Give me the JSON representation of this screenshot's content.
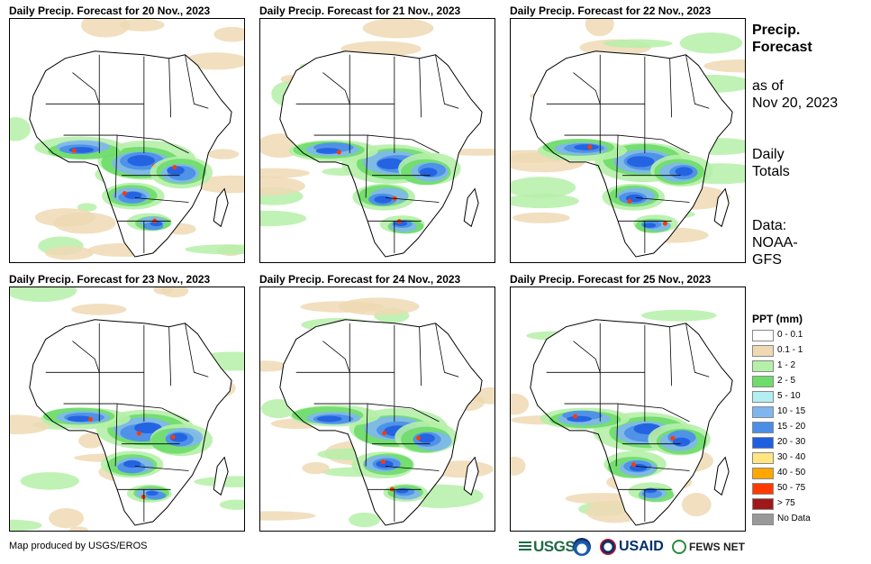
{
  "panels": [
    {
      "title": "Daily Precip. Forecast for 20 Nov., 2023"
    },
    {
      "title": "Daily Precip. Forecast for 21 Nov., 2023"
    },
    {
      "title": "Daily Precip. Forecast for 22 Nov., 2023"
    },
    {
      "title": "Daily Precip. Forecast for 23 Nov., 2023"
    },
    {
      "title": "Daily Precip. Forecast for 24 Nov., 2023"
    },
    {
      "title": "Daily Precip. Forecast for 25 Nov., 2023"
    }
  ],
  "sidebar": {
    "title_line1": "Precip.",
    "title_line2": "Forecast",
    "asof_line1": "as of",
    "asof_line2": "Nov 20, 2023",
    "totals_line1": "Daily",
    "totals_line2": "Totals",
    "data_line1": "Data:",
    "data_line2": "NOAA-",
    "data_line3": "GFS"
  },
  "legend": {
    "title": "PPT (mm)",
    "items": [
      {
        "label": "0 - 0.1",
        "color": "#ffffff"
      },
      {
        "label": "0.1 - 1",
        "color": "#efd9b4"
      },
      {
        "label": "1 - 2",
        "color": "#b5f0a8"
      },
      {
        "label": "2 - 5",
        "color": "#6ddc6a"
      },
      {
        "label": "5 - 10",
        "color": "#b2eef2"
      },
      {
        "label": "10 - 15",
        "color": "#7fb6ef"
      },
      {
        "label": "15 - 20",
        "color": "#4a8ee8"
      },
      {
        "label": "20 - 30",
        "color": "#1f5ee0"
      },
      {
        "label": "30 - 40",
        "color": "#ffe680"
      },
      {
        "label": "40 - 50",
        "color": "#ffa600"
      },
      {
        "label": "50 - 75",
        "color": "#ff3a00"
      },
      {
        "label": "> 75",
        "color": "#a01818"
      },
      {
        "label": "No Data",
        "color": "#999999"
      }
    ]
  },
  "credit": "Map produced by USGS/EROS",
  "logos": {
    "usgs": "USGS",
    "usaid": "USAID",
    "fews": "FEWS NET"
  }
}
